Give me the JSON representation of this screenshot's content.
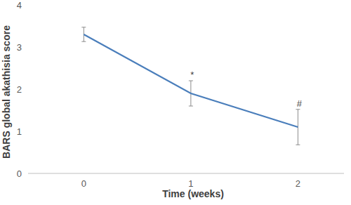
{
  "chart_data": {
    "type": "line",
    "x_label": "Time (weeks)",
    "y_label": "BARS global akathisia score",
    "x": [
      0,
      1,
      2
    ],
    "series": [
      {
        "name": null,
        "color": "#4a7ebb",
        "values": [
          3.3,
          1.9,
          1.1
        ],
        "errors": [
          0.17,
          0.3,
          0.42
        ]
      }
    ],
    "xlim": [
      -0.52,
      2.43
    ],
    "xticks": [
      0,
      1,
      2
    ],
    "ylim": [
      0,
      4
    ],
    "yticks": [
      0,
      1,
      2,
      3,
      4
    ],
    "grid": false,
    "annotations": [
      {
        "text": "*",
        "x": 1
      },
      {
        "text": "#",
        "x": 2
      }
    ]
  }
}
